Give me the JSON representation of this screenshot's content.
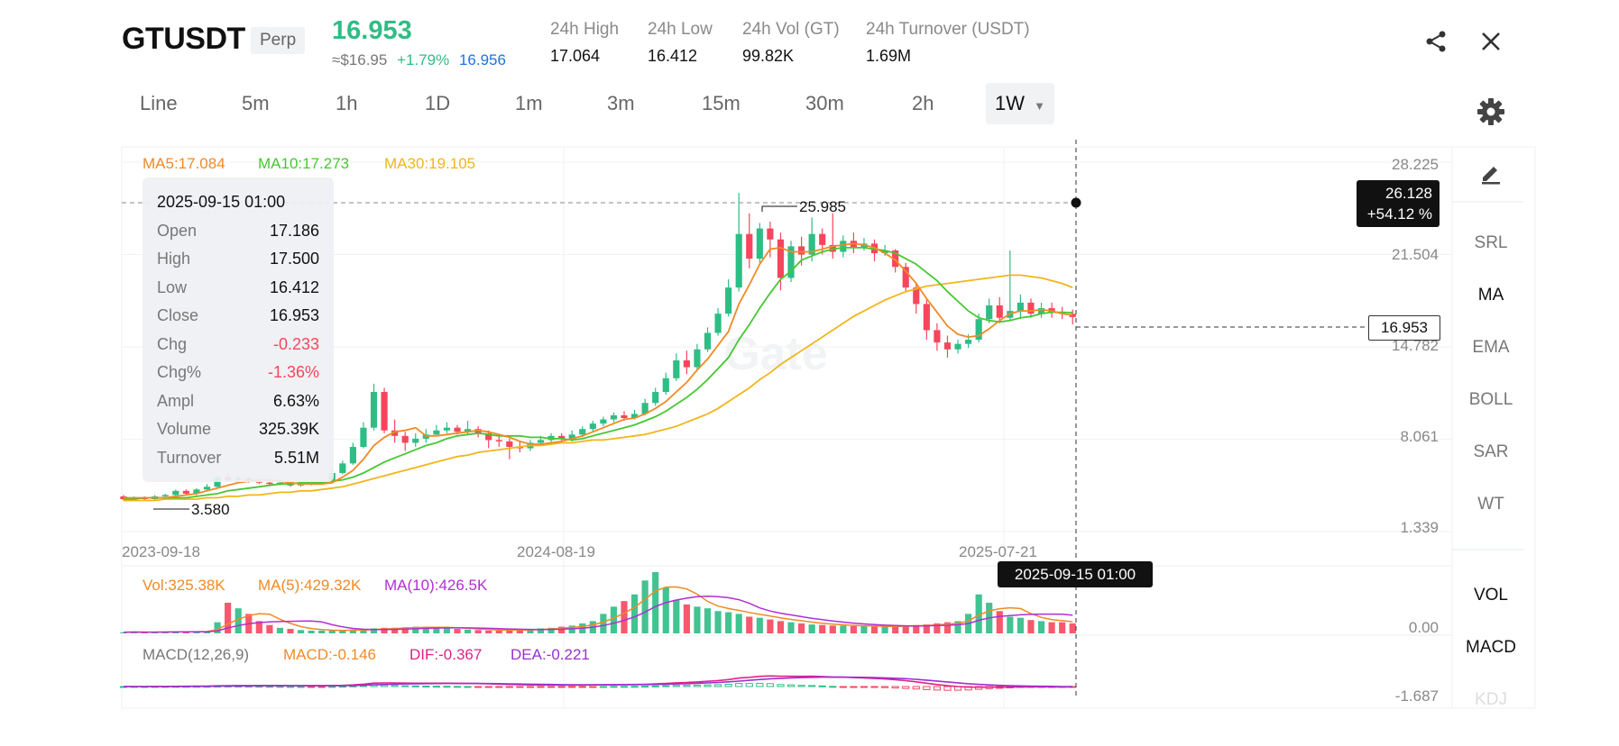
{
  "header": {
    "symbol": "GTUSDT",
    "contract_type": "Perp",
    "last_price": "16.953",
    "usd_price": "≈$16.95",
    "change_pct": "+1.79%",
    "mark_price": "16.956",
    "stats": [
      {
        "label": "24h High",
        "value": "17.064"
      },
      {
        "label": "24h Low",
        "value": "16.412"
      },
      {
        "label": "24h Vol (GT)",
        "value": "99.82K"
      },
      {
        "label": "24h Turnover (USDT)",
        "value": "1.69M"
      }
    ],
    "share_icon": "share-icon",
    "close_icon": "close-icon"
  },
  "timeframes": [
    "Line",
    "5m",
    "1h",
    "1D",
    "1m",
    "3m",
    "15m",
    "30m",
    "2h",
    "1W"
  ],
  "active_timeframe": "1W",
  "indicators_main": {
    "ma5": "MA5:17.084",
    "ma10": "MA10:17.273",
    "ma30": "MA30:19.105"
  },
  "tooltip": {
    "datetime": "2025-09-15 01:00",
    "rows": [
      {
        "k": "Open",
        "v": "17.186"
      },
      {
        "k": "High",
        "v": "17.500"
      },
      {
        "k": "Low",
        "v": "16.412"
      },
      {
        "k": "Close",
        "v": "16.953"
      },
      {
        "k": "Chg",
        "v": "-0.233"
      },
      {
        "k": "Chg%",
        "v": "-1.36%"
      },
      {
        "k": "Ampl",
        "v": "6.63%"
      },
      {
        "k": "Volume",
        "v": "325.39K"
      },
      {
        "k": "Turnover",
        "v": "5.51M"
      }
    ]
  },
  "y_axis_main": [
    "28.225",
    "21.504",
    "14.782",
    "8.061",
    "1.339"
  ],
  "x_axis": [
    "2023-09-18",
    "2024-08-19",
    "2025-07-21"
  ],
  "crosshair": {
    "price": "26.128",
    "pct": "+54.12 %",
    "time": "2025-09-15 01:00",
    "last_price_tag": "16.953"
  },
  "extremes": {
    "high": "25.985",
    "low": "3.580"
  },
  "watermark": "Gate",
  "volume_panel": {
    "vol": "Vol:325.38K",
    "ma5": "MA(5):429.32K",
    "ma10": "MA(10):426.5K",
    "axis": "0.00"
  },
  "macd_panel": {
    "title": "MACD(12,26,9)",
    "macd": "MACD:-0.146",
    "dif": "DIF:-0.367",
    "dea": "DEA:-0.221",
    "axis": "-1.687"
  },
  "side_tools": [
    "SRL",
    "MA",
    "EMA",
    "BOLL",
    "SAR",
    "WT"
  ],
  "side_tools_active": [
    "MA"
  ],
  "side_sub": [
    "VOL",
    "MACD",
    "KDJ"
  ],
  "colors": {
    "up": "#2ebd85",
    "down": "#f6465d",
    "ma5": "#f08a24",
    "ma10": "#46c832",
    "ma30": "#f2b51b",
    "macd_dif": "#e0218a",
    "macd_dea": "#9b2fd1",
    "accent_blue": "#1a73e8"
  },
  "chart_data": {
    "type": "candlestick",
    "series_ohlc": [
      [
        3.9,
        3.7,
        4.0,
        3.6
      ],
      [
        3.7,
        3.8,
        3.9,
        3.6
      ],
      [
        3.8,
        3.7,
        3.9,
        3.6
      ],
      [
        3.7,
        3.9,
        4.0,
        3.6
      ],
      [
        3.9,
        4.0,
        4.1,
        3.8
      ],
      [
        4.0,
        4.3,
        4.4,
        3.9
      ],
      [
        4.3,
        4.1,
        4.4,
        4.0
      ],
      [
        4.1,
        4.4,
        4.5,
        4.0
      ],
      [
        4.4,
        4.6,
        4.8,
        4.3
      ],
      [
        4.6,
        5.3,
        5.4,
        4.5
      ],
      [
        5.3,
        5.1,
        5.6,
        5.0
      ],
      [
        5.1,
        5.2,
        5.4,
        4.9
      ],
      [
        5.2,
        5.0,
        5.3,
        4.9
      ],
      [
        5.0,
        4.9,
        5.1,
        4.8
      ],
      [
        4.9,
        4.8,
        5.0,
        4.7
      ],
      [
        4.8,
        4.9,
        5.1,
        4.7
      ],
      [
        4.9,
        4.7,
        5.0,
        4.6
      ],
      [
        4.7,
        4.8,
        4.9,
        4.6
      ],
      [
        4.8,
        4.9,
        5.0,
        4.7
      ],
      [
        4.9,
        5.0,
        5.1,
        4.8
      ],
      [
        5.0,
        5.6,
        5.8,
        4.9
      ],
      [
        5.6,
        6.3,
        6.5,
        5.5
      ],
      [
        6.3,
        7.5,
        7.8,
        6.2
      ],
      [
        7.5,
        8.9,
        9.3,
        7.4
      ],
      [
        8.9,
        11.5,
        12.1,
        8.7
      ],
      [
        11.5,
        8.7,
        11.8,
        8.5
      ],
      [
        8.7,
        8.3,
        9.5,
        7.8
      ],
      [
        8.3,
        7.8,
        8.6,
        7.2
      ],
      [
        7.8,
        8.1,
        8.5,
        7.5
      ],
      [
        8.1,
        8.4,
        8.8,
        7.8
      ],
      [
        8.4,
        8.7,
        9.1,
        8.3
      ],
      [
        8.7,
        8.9,
        9.3,
        8.5
      ],
      [
        8.9,
        8.6,
        9.1,
        8.4
      ],
      [
        8.6,
        8.8,
        9.4,
        8.4
      ],
      [
        8.8,
        8.5,
        9.0,
        8.2
      ],
      [
        8.5,
        8.0,
        8.7,
        7.4
      ],
      [
        8.0,
        7.9,
        8.3,
        7.5
      ],
      [
        7.9,
        7.5,
        8.1,
        6.6
      ],
      [
        7.5,
        7.4,
        7.9,
        7.1
      ],
      [
        7.4,
        7.8,
        8.0,
        7.2
      ],
      [
        7.8,
        8.0,
        8.3,
        7.6
      ],
      [
        8.0,
        8.3,
        8.5,
        7.8
      ],
      [
        8.3,
        8.1,
        8.5,
        7.9
      ],
      [
        8.1,
        8.4,
        8.7,
        7.9
      ],
      [
        8.4,
        8.8,
        9.0,
        8.2
      ],
      [
        8.8,
        9.2,
        9.4,
        8.6
      ],
      [
        9.2,
        9.5,
        9.7,
        9.0
      ],
      [
        9.5,
        9.8,
        10.0,
        9.3
      ],
      [
        9.8,
        9.6,
        10.1,
        9.4
      ],
      [
        9.6,
        9.9,
        10.2,
        9.5
      ],
      [
        9.9,
        10.7,
        11.0,
        9.8
      ],
      [
        10.7,
        11.5,
        11.8,
        10.5
      ],
      [
        11.5,
        12.5,
        12.9,
        11.3
      ],
      [
        12.5,
        13.8,
        14.3,
        12.3
      ],
      [
        13.8,
        13.3,
        14.5,
        12.8
      ],
      [
        13.3,
        14.6,
        15.0,
        13.1
      ],
      [
        14.6,
        15.8,
        16.2,
        14.4
      ],
      [
        15.8,
        17.2,
        17.6,
        15.6
      ],
      [
        17.2,
        19.1,
        19.7,
        17.0
      ],
      [
        19.1,
        23.0,
        25.985,
        18.8
      ],
      [
        23.0,
        21.2,
        24.5,
        20.5
      ],
      [
        21.2,
        23.4,
        23.8,
        20.9
      ],
      [
        23.4,
        22.6,
        23.9,
        21.3
      ],
      [
        22.6,
        19.8,
        23.1,
        18.9
      ],
      [
        19.8,
        22.1,
        22.5,
        19.5
      ],
      [
        22.1,
        21.5,
        22.8,
        20.7
      ],
      [
        21.5,
        23.0,
        24.2,
        21.0
      ],
      [
        23.0,
        22.2,
        23.4,
        21.5
      ],
      [
        22.2,
        21.7,
        24.5,
        21.2
      ],
      [
        21.7,
        22.5,
        22.9,
        21.3
      ],
      [
        22.5,
        22.0,
        23.1,
        21.6
      ],
      [
        22.0,
        22.3,
        22.7,
        21.8
      ],
      [
        22.3,
        21.6,
        22.6,
        21.0
      ],
      [
        21.6,
        21.8,
        22.2,
        21.4
      ],
      [
        21.8,
        20.6,
        21.9,
        20.2
      ],
      [
        20.6,
        19.1,
        20.9,
        18.8
      ],
      [
        19.1,
        17.9,
        19.5,
        17.2
      ],
      [
        17.9,
        16.0,
        18.3,
        15.3
      ],
      [
        16.0,
        15.1,
        16.5,
        14.5
      ],
      [
        15.1,
        14.6,
        15.6,
        14.0
      ],
      [
        14.6,
        15.0,
        15.3,
        14.3
      ],
      [
        15.0,
        15.3,
        15.7,
        14.7
      ],
      [
        15.3,
        16.8,
        17.2,
        15.1
      ],
      [
        16.8,
        17.8,
        18.3,
        16.5
      ],
      [
        17.8,
        16.9,
        18.4,
        16.5
      ],
      [
        16.9,
        17.4,
        21.8,
        16.7
      ],
      [
        17.4,
        18.0,
        18.6,
        16.8
      ],
      [
        18.0,
        17.2,
        18.3,
        16.9
      ],
      [
        17.2,
        17.6,
        18.0,
        16.9
      ],
      [
        17.6,
        17.3,
        18.0,
        16.9
      ],
      [
        17.3,
        17.186,
        17.7,
        16.8
      ],
      [
        17.186,
        16.953,
        17.5,
        16.412
      ]
    ],
    "ma5": [
      3.8,
      3.8,
      3.8,
      3.8,
      3.8,
      3.9,
      4.0,
      4.1,
      4.3,
      4.5,
      4.7,
      4.9,
      5.0,
      5.1,
      5.1,
      5.0,
      4.9,
      4.8,
      4.8,
      4.8,
      4.9,
      5.3,
      5.8,
      6.6,
      7.6,
      8.2,
      8.6,
      8.7,
      8.9,
      8.3,
      8.3,
      8.4,
      8.5,
      8.6,
      8.7,
      8.6,
      8.4,
      8.2,
      7.9,
      7.7,
      7.7,
      7.8,
      7.9,
      8.1,
      8.3,
      8.6,
      8.9,
      9.2,
      9.5,
      9.6,
      9.9,
      10.3,
      10.8,
      11.5,
      12.2,
      13.1,
      13.9,
      14.9,
      15.9,
      17.9,
      19.3,
      20.8,
      21.9,
      22.0,
      21.7,
      21.7,
      21.7,
      21.9,
      22.1,
      22.2,
      22.3,
      22.2,
      22.0,
      21.6,
      21.1,
      20.3,
      19.4,
      18.3,
      17.3,
      16.3,
      15.7,
      15.5,
      15.6,
      16.1,
      16.7,
      17.2,
      17.4,
      17.4,
      17.5,
      17.4,
      17.2,
      17.084
    ],
    "ma10": [
      3.7,
      3.7,
      3.8,
      3.8,
      3.8,
      3.8,
      3.8,
      3.9,
      4.0,
      4.1,
      4.3,
      4.4,
      4.5,
      4.6,
      4.7,
      4.8,
      4.8,
      4.9,
      4.9,
      4.9,
      5.0,
      5.1,
      5.3,
      5.6,
      6.0,
      6.4,
      6.7,
      7.0,
      7.3,
      7.6,
      7.8,
      8.1,
      8.3,
      8.4,
      8.5,
      8.4,
      8.3,
      8.3,
      8.3,
      8.2,
      8.2,
      8.1,
      8.1,
      8.0,
      8.1,
      8.3,
      8.5,
      8.7,
      8.9,
      9.1,
      9.4,
      9.7,
      10.1,
      10.6,
      11.1,
      11.7,
      12.4,
      13.2,
      14.0,
      15.3,
      16.4,
      17.6,
      18.7,
      19.7,
      20.3,
      21.1,
      21.4,
      21.7,
      21.9,
      22.0,
      22.0,
      22.0,
      21.9,
      21.8,
      21.6,
      21.2,
      20.8,
      20.2,
      19.6,
      18.8,
      18.1,
      17.4,
      16.9,
      16.7,
      16.6,
      16.7,
      16.9,
      17.0,
      17.2,
      17.3,
      17.3,
      17.273
    ],
    "ma30": [
      3.6,
      3.6,
      3.6,
      3.6,
      3.7,
      3.7,
      3.7,
      3.7,
      3.8,
      3.8,
      3.9,
      3.9,
      4.0,
      4.0,
      4.1,
      4.2,
      4.2,
      4.3,
      4.3,
      4.4,
      4.5,
      4.6,
      4.8,
      5.0,
      5.2,
      5.4,
      5.6,
      5.8,
      6.0,
      6.2,
      6.4,
      6.6,
      6.8,
      6.9,
      7.1,
      7.2,
      7.3,
      7.4,
      7.5,
      7.6,
      7.6,
      7.7,
      7.8,
      7.8,
      7.9,
      8.0,
      8.0,
      8.1,
      8.2,
      8.3,
      8.4,
      8.6,
      8.8,
      9.0,
      9.3,
      9.6,
      9.9,
      10.3,
      10.8,
      11.3,
      11.8,
      12.4,
      12.9,
      13.5,
      14.0,
      14.5,
      15.0,
      15.5,
      16.0,
      16.5,
      17.0,
      17.4,
      17.8,
      18.2,
      18.5,
      18.8,
      19.0,
      19.2,
      19.3,
      19.4,
      19.5,
      19.6,
      19.7,
      19.8,
      19.9,
      20.0,
      20.0,
      19.9,
      19.8,
      19.6,
      19.4,
      19.105
    ],
    "y_range": [
      0,
      28.225
    ],
    "volume": [
      2,
      3,
      2,
      2,
      3,
      4,
      3,
      3,
      4,
      20,
      55,
      45,
      35,
      22,
      15,
      10,
      8,
      6,
      5,
      5,
      5,
      6,
      7,
      8,
      9,
      10,
      10,
      11,
      12,
      12,
      10,
      9,
      8,
      7,
      6,
      5,
      5,
      6,
      7,
      8,
      9,
      10,
      12,
      14,
      18,
      22,
      35,
      48,
      58,
      70,
      95,
      110,
      82,
      60,
      52,
      48,
      45,
      40,
      38,
      35,
      30,
      28,
      25,
      22,
      20,
      18,
      16,
      15,
      14,
      14,
      13,
      13,
      12,
      12,
      13,
      14,
      15,
      16,
      18,
      20,
      22,
      35,
      70,
      55,
      40,
      30,
      28,
      24,
      22,
      20,
      20,
      18
    ],
    "volume_up": [
      true,
      true,
      false,
      true,
      true,
      true,
      false,
      true,
      true,
      true,
      false,
      true,
      false,
      false,
      false,
      true,
      false,
      true,
      true,
      true,
      true,
      true,
      true,
      true,
      true,
      false,
      false,
      false,
      true,
      true,
      true,
      true,
      false,
      true,
      false,
      false,
      false,
      false,
      false,
      true,
      true,
      true,
      false,
      true,
      true,
      true,
      true,
      true,
      false,
      true,
      true,
      true,
      true,
      true,
      false,
      true,
      true,
      true,
      true,
      true,
      false,
      true,
      false,
      false,
      true,
      false,
      true,
      false,
      false,
      true,
      false,
      true,
      false,
      true,
      false,
      false,
      false,
      false,
      false,
      false,
      true,
      true,
      true,
      true,
      false,
      true,
      true,
      false,
      true,
      false,
      false,
      false
    ]
  }
}
